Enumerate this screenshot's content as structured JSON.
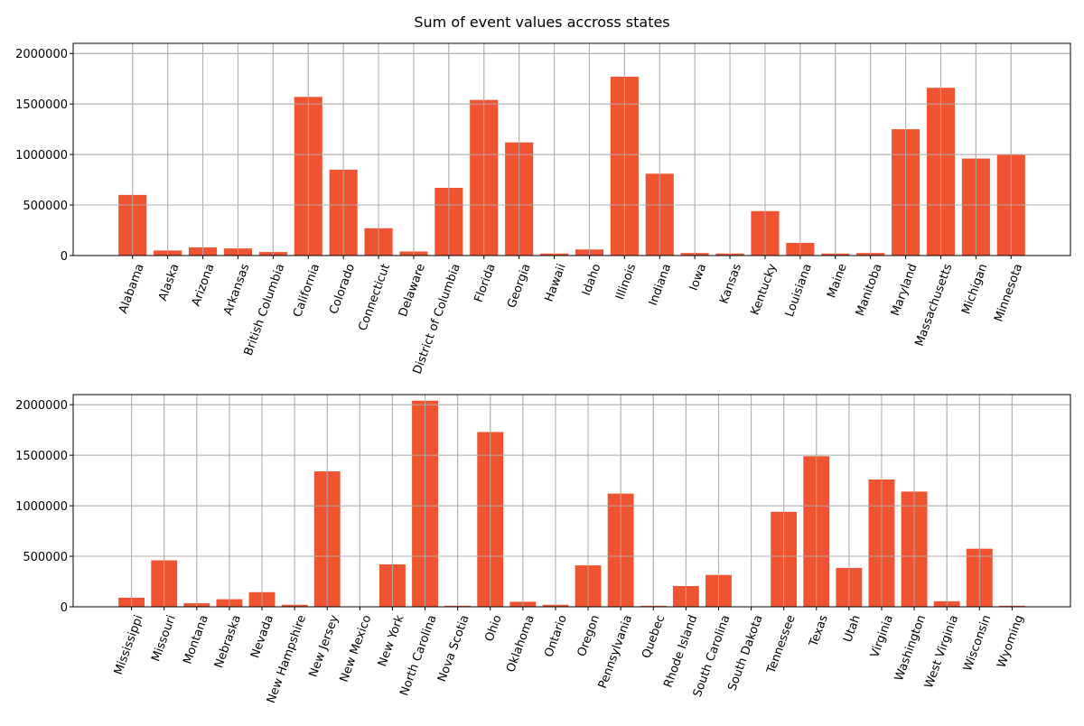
{
  "chart_data": {
    "title": "Sum of event values accross states",
    "colors": {
      "bar": "#ef532f",
      "grid": "#b0b0b0",
      "axis": "#000000"
    },
    "grid": true,
    "charts": [
      {
        "type": "bar",
        "xlabel": "",
        "ylabel": "",
        "ylim": [
          0,
          2100000
        ],
        "yticks": [
          0,
          500000,
          1000000,
          1500000,
          2000000
        ],
        "ytick_labels": [
          "0",
          "500000",
          "1000000",
          "1500000",
          "2000000"
        ],
        "categories": [
          "Alabama",
          "Alaska",
          "Arizona",
          "Arkansas",
          "British Columbia",
          "California",
          "Colorado",
          "Connecticut",
          "Delaware",
          "District of Columbia",
          "Florida",
          "Georgia",
          "Hawaii",
          "Idaho",
          "Illinois",
          "Indiana",
          "Iowa",
          "Kansas",
          "Kentucky",
          "Louisiana",
          "Maine",
          "Manitoba",
          "Maryland",
          "Massachusetts",
          "Michigan",
          "Minnesota"
        ],
        "values": [
          600000,
          50000,
          80000,
          70000,
          35000,
          1570000,
          850000,
          270000,
          40000,
          670000,
          1540000,
          1120000,
          20000,
          60000,
          1770000,
          810000,
          25000,
          20000,
          440000,
          125000,
          20000,
          25000,
          1250000,
          1660000,
          960000,
          1000000
        ]
      },
      {
        "type": "bar",
        "xlabel": "",
        "ylabel": "",
        "ylim": [
          0,
          2100000
        ],
        "yticks": [
          0,
          500000,
          1000000,
          1500000,
          2000000
        ],
        "ytick_labels": [
          "0",
          "500000",
          "1000000",
          "1500000",
          "2000000"
        ],
        "categories": [
          "Mississippi",
          "Missouri",
          "Montana",
          "Nebraska",
          "Nevada",
          "New Hampshire",
          "New Jersey",
          "New Mexico",
          "New York",
          "North Carolina",
          "Nova Scotia",
          "Ohio",
          "Oklahoma",
          "Ontario",
          "Oregon",
          "Pennsylvania",
          "Quebec",
          "Rhode Island",
          "South Carolina",
          "South Dakota",
          "Tennessee",
          "Texas",
          "Utah",
          "Virginia",
          "Washington",
          "West Virginia",
          "Wisconsin",
          "Wyoming"
        ],
        "values": [
          90000,
          460000,
          35000,
          75000,
          145000,
          20000,
          1340000,
          0,
          420000,
          2040000,
          10000,
          1730000,
          50000,
          20000,
          410000,
          1120000,
          10000,
          205000,
          315000,
          0,
          940000,
          1490000,
          385000,
          1260000,
          1140000,
          55000,
          575000,
          10000
        ]
      }
    ]
  }
}
